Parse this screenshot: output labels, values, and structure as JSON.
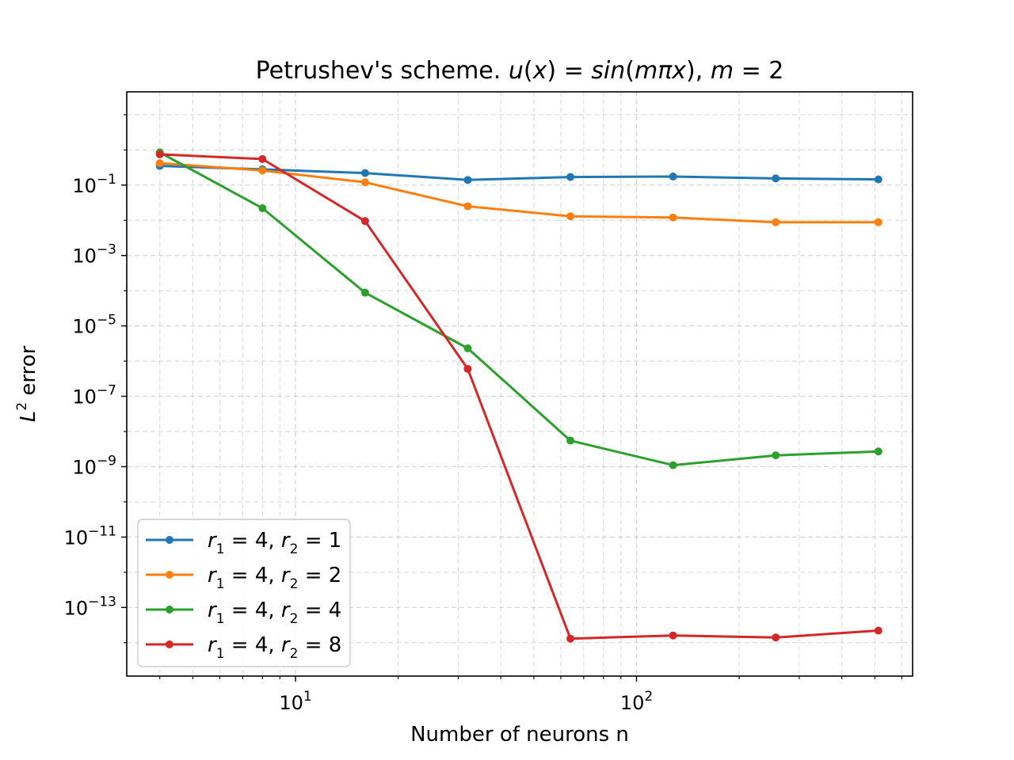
{
  "chart_data": {
    "type": "line",
    "title": "Petrushev's scheme. u(x) = sin(mπx), m = 2",
    "title_parts": {
      "prefix": "Petrushev's scheme. ",
      "u": "u",
      "open": "(",
      "x": "x",
      "close_eq": ") = ",
      "sin": "sin",
      "open2": "(",
      "m": "m",
      "pi": "π",
      "x2": "x",
      "close2": ")",
      "comma": ", ",
      "m2": "m",
      "eq2": " = 2"
    },
    "xlabel": "Number of neurons n",
    "ylabel": "L² error",
    "ylabel_parts": {
      "L": "L",
      "sup": "2",
      "rest": " error"
    },
    "xscale": "log",
    "yscale": "log",
    "xlim": [
      3.2,
      645
    ],
    "ylim_exp": [
      -14.95,
      1.65
    ],
    "grid": true,
    "legend_placement": "lower-left",
    "x_ticks": [
      {
        "base": "10",
        "exp": "1",
        "value": 10
      },
      {
        "base": "10",
        "exp": "2",
        "value": 100
      }
    ],
    "y_ticks": [
      {
        "base": "10",
        "exp": "−1",
        "value": -1
      },
      {
        "base": "10",
        "exp": "−3",
        "value": -3
      },
      {
        "base": "10",
        "exp": "−5",
        "value": -5
      },
      {
        "base": "10",
        "exp": "−7",
        "value": -7
      },
      {
        "base": "10",
        "exp": "−9",
        "value": -9
      },
      {
        "base": "10",
        "exp": "−11",
        "value": -11
      },
      {
        "base": "10",
        "exp": "−13",
        "value": -13
      }
    ],
    "x": [
      4,
      8,
      16,
      32,
      64,
      128,
      256,
      512
    ],
    "series": [
      {
        "name": "r1 = 4, r2 = 1",
        "label": {
          "r1": "r",
          "s1": "1",
          "mid": " = 4, ",
          "r2": "r",
          "s2": "2",
          "end": " = 1"
        },
        "color": "#1f77b4",
        "values": [
          0.35,
          0.28,
          0.22,
          0.14,
          0.17,
          0.175,
          0.155,
          0.145
        ]
      },
      {
        "name": "r1 = 4, r2 = 2",
        "label": {
          "r1": "r",
          "s1": "1",
          "mid": " = 4, ",
          "r2": "r",
          "s2": "2",
          "end": " = 2"
        },
        "color": "#ff7f0e",
        "values": [
          0.42,
          0.26,
          0.12,
          0.025,
          0.013,
          0.012,
          0.0088,
          0.0088
        ]
      },
      {
        "name": "r1 = 4, r2 = 4",
        "label": {
          "r1": "r",
          "s1": "1",
          "mid": " = 4, ",
          "r2": "r",
          "s2": "2",
          "end": " = 4"
        },
        "color": "#2ca02c",
        "values": [
          0.85,
          0.022,
          8.8e-05,
          2.3e-06,
          5.5e-09,
          1.1e-09,
          2.1e-09,
          2.7e-09
        ]
      },
      {
        "name": "r1 = 4, r2 = 8",
        "label": {
          "r1": "r",
          "s1": "1",
          "mid": " = 4, ",
          "r2": "r",
          "s2": "2",
          "end": " = 8"
        },
        "color": "#d62728",
        "values": [
          0.75,
          0.55,
          0.0095,
          6e-07,
          1.3e-14,
          1.6e-14,
          1.4e-14,
          2.2e-14
        ]
      }
    ]
  }
}
